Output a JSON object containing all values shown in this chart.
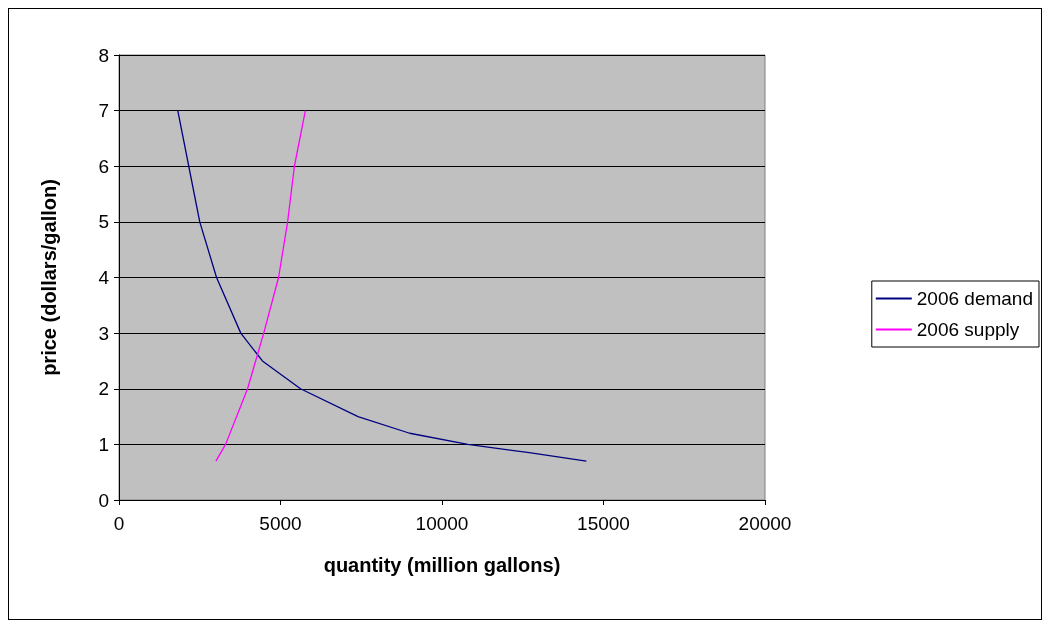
{
  "chart_data": {
    "type": "line",
    "xlabel": "quantity (million gallons)",
    "ylabel": "price (dollars/gallon)",
    "xlim": [
      0,
      20000
    ],
    "xticks": [
      0,
      5000,
      10000,
      15000,
      20000
    ],
    "ylim": [
      0,
      8
    ],
    "yticks": [
      0,
      1,
      2,
      3,
      4,
      5,
      6,
      7,
      8
    ],
    "grid": "y",
    "legend": "right",
    "marker": "none",
    "line_style": "solid",
    "series": [
      {
        "name": "2006 demand",
        "color": "#000080",
        "x": [
          1820,
          2160,
          2500,
          3020,
          3770,
          4440,
          5620,
          7400,
          9000,
          10800,
          12700,
          14470
        ],
        "values": [
          7,
          6,
          5,
          4,
          3,
          2.5,
          2,
          1.5,
          1.2,
          1,
          0.85,
          0.7
        ]
      },
      {
        "name": "2006 supply",
        "color": "#ff00ff",
        "x": [
          3000,
          3300,
          3980,
          4480,
          4940,
          5220,
          5430,
          5770
        ],
        "values": [
          0.7,
          1,
          2,
          3,
          4,
          5,
          6,
          7
        ]
      }
    ]
  }
}
